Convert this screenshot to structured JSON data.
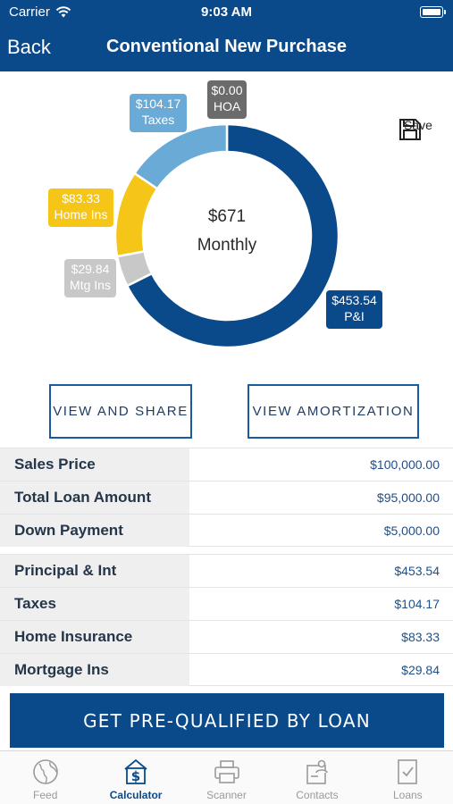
{
  "status": {
    "carrier": "Carrier",
    "time": "9:03 AM"
  },
  "nav": {
    "back": "Back",
    "title": "Conventional New Purchase"
  },
  "chart": {
    "center_value": "$671",
    "center_label": "Monthly",
    "save_label": "Save",
    "labels": {
      "taxes": {
        "amount": "$104.17",
        "name": "Taxes"
      },
      "hoa": {
        "amount": "$0.00",
        "name": "HOA"
      },
      "home": {
        "amount": "$83.33",
        "name": "Home Ins"
      },
      "mtg": {
        "amount": "$29.84",
        "name": "Mtg Ins"
      },
      "pi": {
        "amount": "$453.54",
        "name": "P&I"
      }
    }
  },
  "chart_data": {
    "type": "pie",
    "categories": [
      "P&I",
      "Mtg Ins",
      "Home Ins",
      "Taxes",
      "HOA"
    ],
    "values": [
      453.54,
      29.84,
      83.33,
      104.17,
      0.0
    ],
    "colors": [
      "#0a4a8a",
      "#c8c8c8",
      "#f5c518",
      "#6aaad6",
      "#6b6b6b"
    ],
    "total": 671,
    "donut": true
  },
  "buttons": {
    "share": "VIEW AND SHARE",
    "amortization": "VIEW AMORTIZATION"
  },
  "loan_rows": [
    {
      "label": "Sales Price",
      "value": "$100,000.00"
    },
    {
      "label": "Total Loan Amount",
      "value": "$95,000.00"
    },
    {
      "label": "Down Payment",
      "value": "$5,000.00"
    }
  ],
  "payment_rows": [
    {
      "label": "Principal & Int",
      "value": "$453.54"
    },
    {
      "label": "Taxes",
      "value": "$104.17"
    },
    {
      "label": "Home Insurance",
      "value": "$83.33"
    },
    {
      "label": "Mortgage Ins",
      "value": "$29.84"
    }
  ],
  "cta": "GET PRE-QUALIFIED BY LOAN",
  "tabs": [
    {
      "label": "Feed",
      "icon": "globe-icon"
    },
    {
      "label": "Calculator",
      "icon": "calculator-icon",
      "active": true
    },
    {
      "label": "Scanner",
      "icon": "printer-icon"
    },
    {
      "label": "Contacts",
      "icon": "contacts-icon"
    },
    {
      "label": "Loans",
      "icon": "document-check-icon"
    }
  ]
}
